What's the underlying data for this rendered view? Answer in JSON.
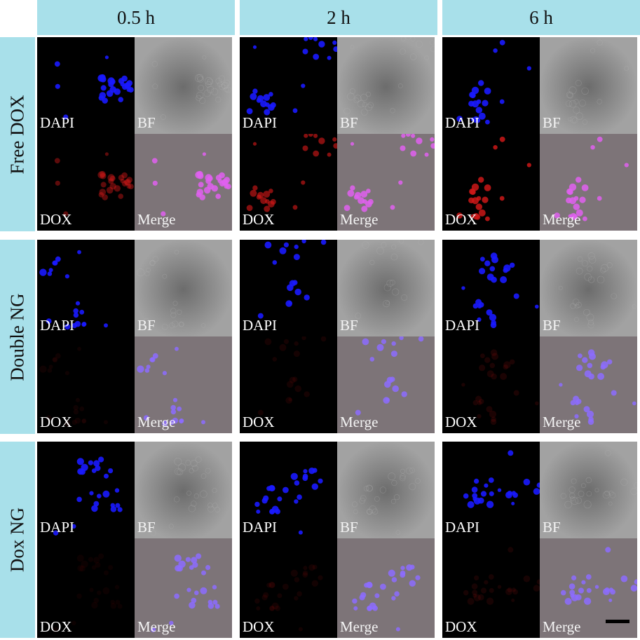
{
  "columns": [
    {
      "label": "0.5 h"
    },
    {
      "label": "2 h"
    },
    {
      "label": "6 h"
    }
  ],
  "rows": [
    {
      "label": "Free DOX",
      "dox_intensity": 0.75
    },
    {
      "label": "Double NG",
      "dox_intensity": 0.12
    },
    {
      "label": "Dox NG",
      "dox_intensity": 0.1
    }
  ],
  "channels": {
    "dapi": "DAPI",
    "bf": "BF",
    "dox": "DOX",
    "merge": "Merge"
  },
  "colors": {
    "header_bg": "#a8e0ea",
    "dapi": "#1a1aff",
    "dox": "#d01818",
    "merge_cell": "#c860ff",
    "bf_bg": "#8a8a8a"
  }
}
